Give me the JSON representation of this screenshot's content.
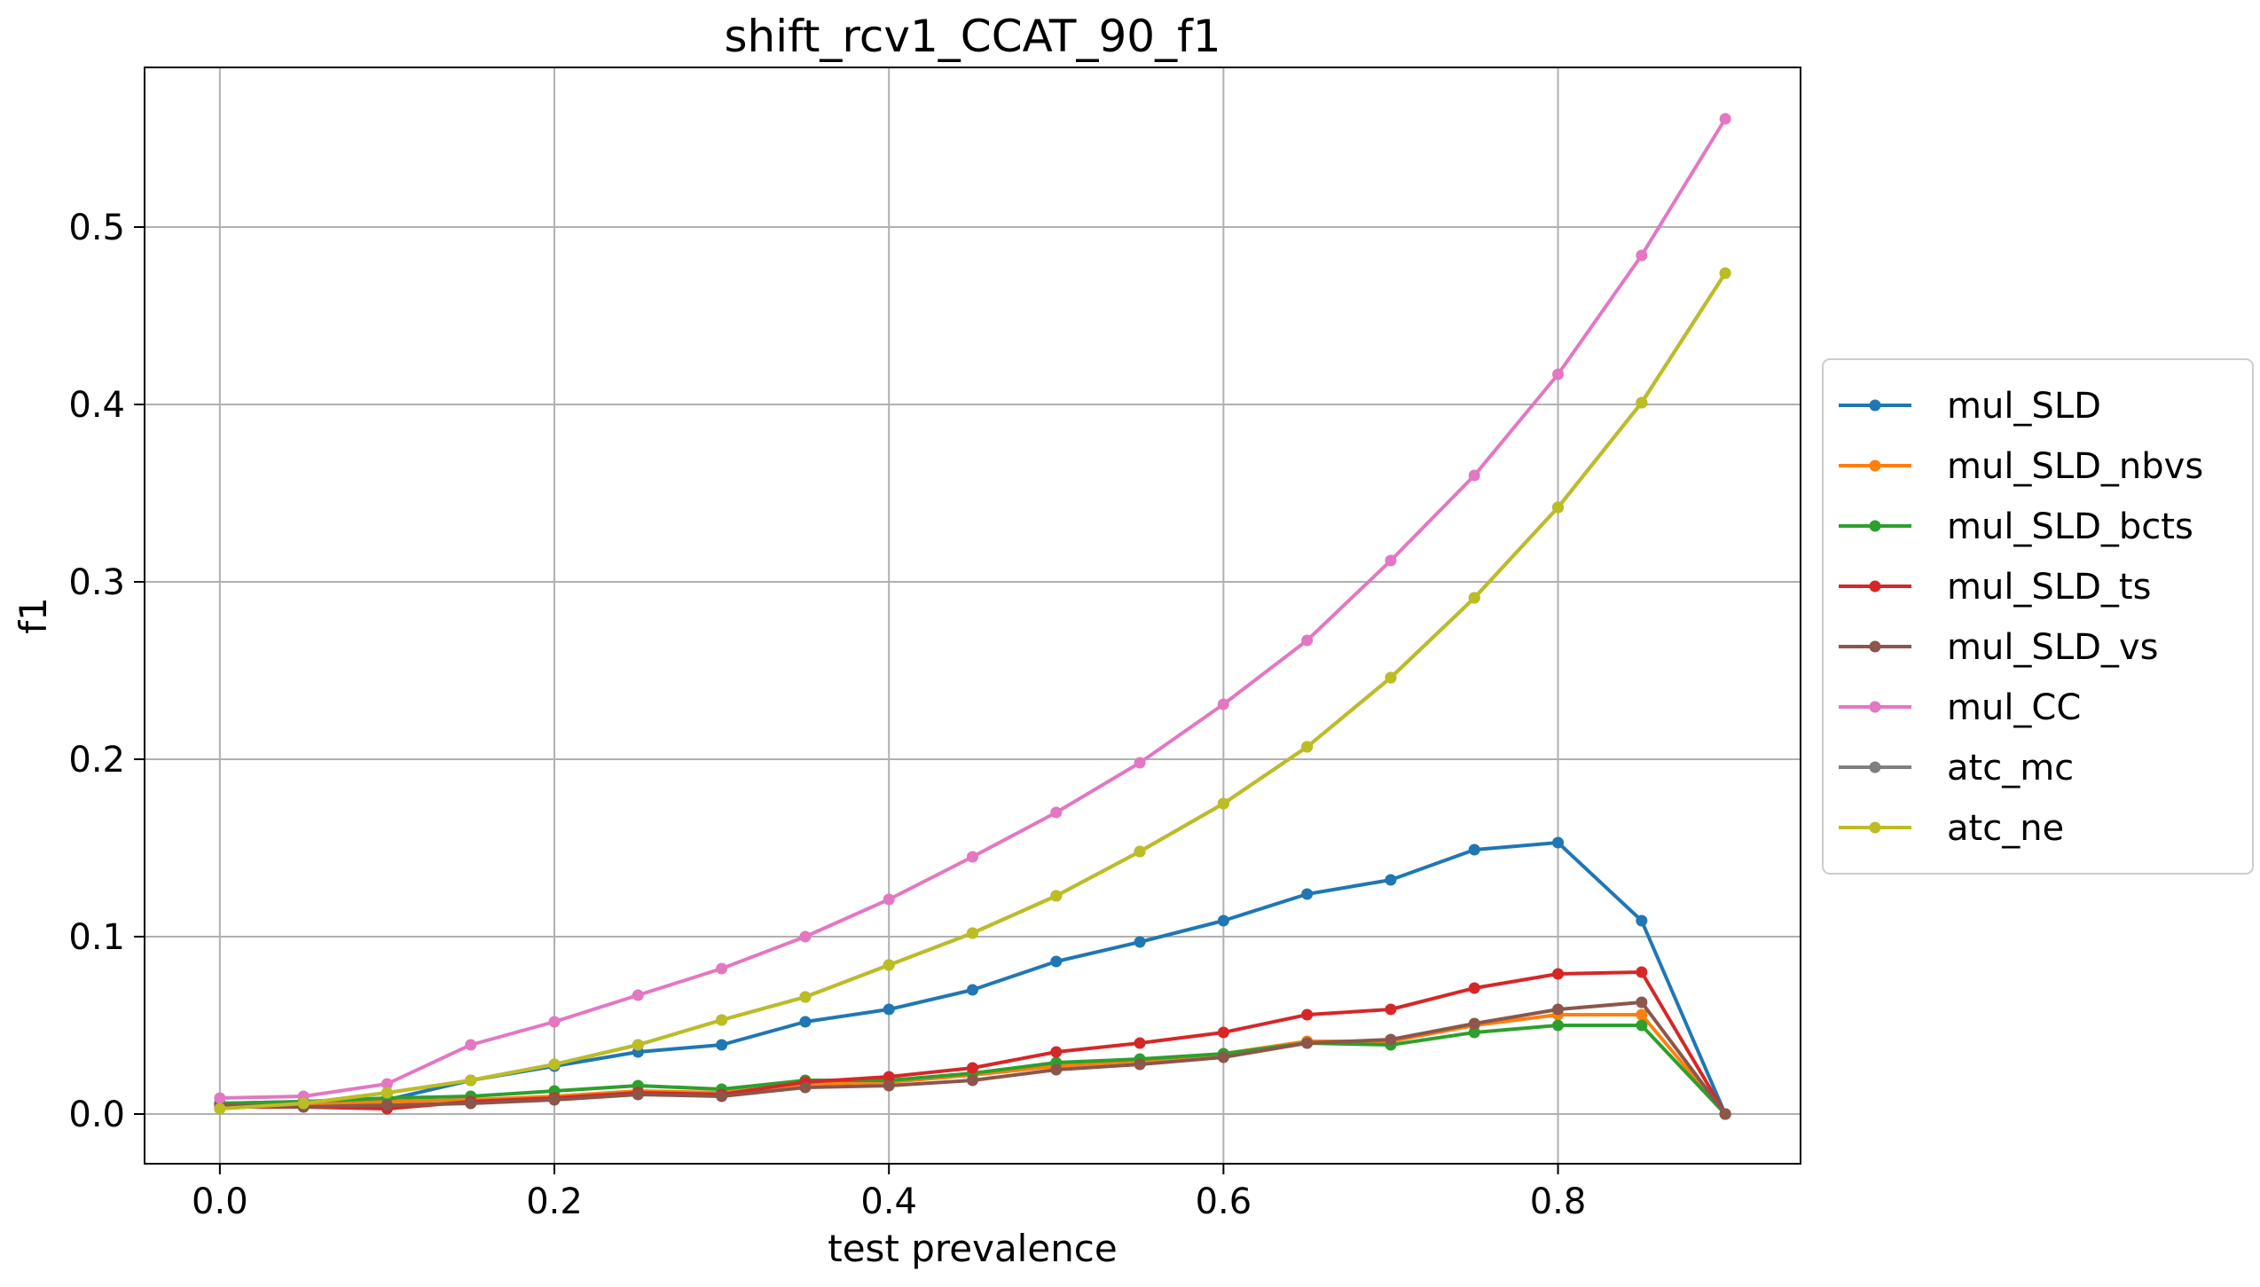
{
  "chart_data": {
    "type": "line",
    "title": "shift_rcv1_CCAT_90_f1",
    "xlabel": "test prevalence",
    "ylabel": "f1",
    "xlim": [
      -0.045,
      0.945
    ],
    "ylim": [
      -0.028,
      0.59
    ],
    "xticks": [
      0.0,
      0.2,
      0.4,
      0.6,
      0.8
    ],
    "xtick_labels": [
      "0.0",
      "0.2",
      "0.4",
      "0.6",
      "0.8"
    ],
    "yticks": [
      0.0,
      0.1,
      0.2,
      0.3,
      0.4,
      0.5
    ],
    "ytick_labels": [
      "0.0",
      "0.1",
      "0.2",
      "0.3",
      "0.4",
      "0.5"
    ],
    "grid": true,
    "legend_position": "outside right",
    "x": [
      0.0,
      0.05,
      0.1,
      0.15,
      0.2,
      0.25,
      0.3,
      0.35,
      0.4,
      0.45,
      0.5,
      0.55,
      0.6,
      0.65,
      0.7,
      0.75,
      0.8,
      0.85,
      0.9
    ],
    "series": [
      {
        "name": "mul_SLD",
        "color": "#1f77b4",
        "values": [
          0.006,
          0.007,
          0.008,
          0.019,
          0.027,
          0.035,
          0.039,
          0.052,
          0.059,
          0.07,
          0.086,
          0.097,
          0.109,
          0.124,
          0.132,
          0.149,
          0.153,
          0.109,
          0.0
        ]
      },
      {
        "name": "mul_SLD_nbvs",
        "color": "#ff7f0e",
        "values": [
          0.005,
          0.005,
          0.007,
          0.008,
          0.01,
          0.013,
          0.012,
          0.017,
          0.018,
          0.022,
          0.027,
          0.03,
          0.034,
          0.041,
          0.041,
          0.05,
          0.056,
          0.056,
          0.0
        ]
      },
      {
        "name": "mul_SLD_bcts",
        "color": "#2ca02c",
        "values": [
          0.006,
          0.007,
          0.009,
          0.01,
          0.013,
          0.016,
          0.014,
          0.019,
          0.019,
          0.023,
          0.029,
          0.031,
          0.034,
          0.04,
          0.039,
          0.046,
          0.05,
          0.05,
          0.0
        ]
      },
      {
        "name": "mul_SLD_ts",
        "color": "#d62728",
        "values": [
          0.004,
          0.004,
          0.003,
          0.007,
          0.009,
          0.012,
          0.011,
          0.018,
          0.021,
          0.026,
          0.035,
          0.04,
          0.046,
          0.056,
          0.059,
          0.071,
          0.079,
          0.08,
          0.0
        ]
      },
      {
        "name": "mul_SLD_vs",
        "color": "#8c564b",
        "values": [
          0.005,
          0.004,
          0.005,
          0.006,
          0.008,
          0.011,
          0.01,
          0.015,
          0.016,
          0.019,
          0.025,
          0.028,
          0.032,
          0.04,
          0.042,
          0.051,
          0.059,
          0.063,
          0.0
        ]
      },
      {
        "name": "mul_CC",
        "color": "#e377c2",
        "values": [
          0.009,
          0.01,
          0.017,
          0.039,
          0.052,
          0.067,
          0.082,
          0.1,
          0.121,
          0.145,
          0.17,
          0.198,
          0.231,
          0.267,
          0.312,
          0.36,
          0.417,
          0.484,
          0.561
        ]
      },
      {
        "name": "atc_mc",
        "color": "#7f7f7f",
        "values": [
          0.003,
          0.006,
          0.012,
          0.019,
          0.028,
          0.039,
          0.053,
          0.066,
          0.084,
          0.102,
          0.123,
          0.148,
          0.175,
          0.207,
          0.246,
          0.291,
          0.342,
          0.401,
          0.474
        ]
      },
      {
        "name": "atc_ne",
        "color": "#bcbd22",
        "values": [
          0.003,
          0.006,
          0.012,
          0.019,
          0.028,
          0.039,
          0.053,
          0.066,
          0.084,
          0.102,
          0.123,
          0.148,
          0.175,
          0.207,
          0.246,
          0.291,
          0.342,
          0.401,
          0.474
        ]
      }
    ]
  }
}
